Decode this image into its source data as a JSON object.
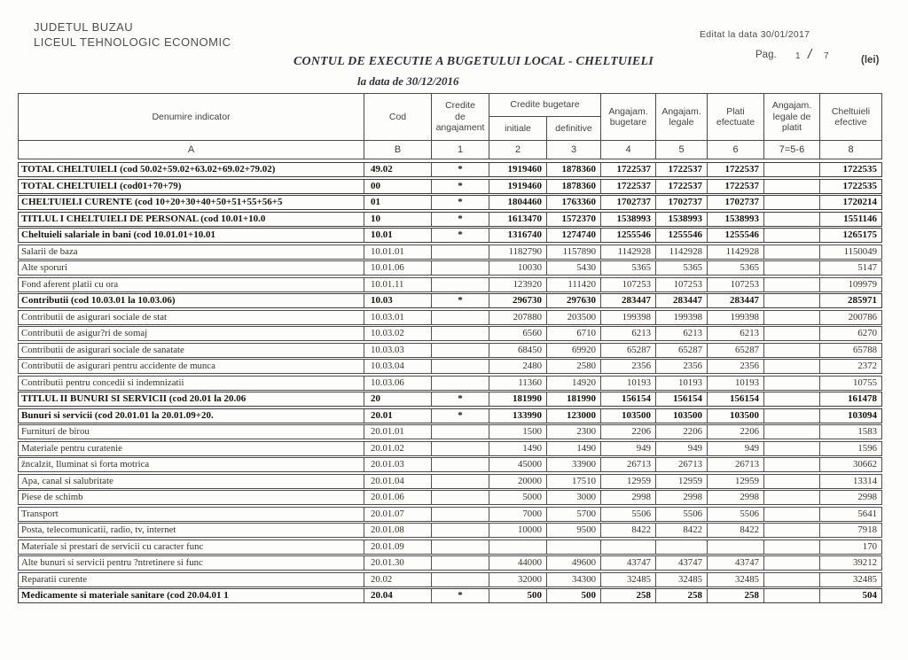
{
  "page": {
    "org_line1": "JUDETUL BUZAU",
    "org_line2": "LICEUL TEHNOLOGIC  ECONOMIC",
    "edited": "Editat la data 30/01/2017",
    "title": "CONTUL DE EXECUTIE A BUGETULUI LOCAL - CHELTUIELI",
    "subtitle": "la data de 30/12/2016",
    "page_label": "Pag.",
    "page_num": "1",
    "page_sep": "/",
    "page_total": "7",
    "currency": "(lei)"
  },
  "table": {
    "headers": {
      "denumire": "Denumire indicator",
      "cod": "Cod",
      "credite_angajament": "Credite\nde\nangajament",
      "credite_bugetare": "Credite bugetare",
      "initiale": "initiale",
      "definitive": "definitive",
      "angajam_bugetare": "Angajam.\nbugetare",
      "angajam_legale": "Angajam.\nlegale",
      "plati_efectuate": "Plati\nefectuate",
      "angajam_legale_de_platit": "Angajam.\nlegale de\nplatit",
      "cheltuieli_efective": "Cheltuieli\nefective"
    },
    "letters": [
      "A",
      "B",
      "1",
      "2",
      "3",
      "4",
      "5",
      "6",
      "7=5-6",
      "8"
    ],
    "rows": [
      {
        "denumire": "TOTAL CHELTUIELI   (cod 50.02+59.02+63.02+69.02+79.02)",
        "cod": "49.02",
        "credite_angajament": "*",
        "initiale": "1919460",
        "definitive": "1878360",
        "ang_bugetare": "1722537",
        "ang_legale": "1722537",
        "plati": "1722537",
        "de_platit": "",
        "efective": "1722535",
        "bold": true
      },
      {
        "denumire": "TOTAL CHELTUIELI  (cod01+70+79)",
        "cod": "00",
        "credite_angajament": "*",
        "initiale": "1919460",
        "definitive": "1878360",
        "ang_bugetare": "1722537",
        "ang_legale": "1722537",
        "plati": "1722537",
        "de_platit": "",
        "efective": "1722535",
        "bold": true
      },
      {
        "denumire": "CHELTUIELI CURENTE  (cod 10+20+30+40+50+51+55+56+5",
        "cod": "01",
        "credite_angajament": "*",
        "initiale": "1804460",
        "definitive": "1763360",
        "ang_bugetare": "1702737",
        "ang_legale": "1702737",
        "plati": "1702737",
        "de_platit": "",
        "efective": "1720214",
        "bold": true
      },
      {
        "denumire": "TITLUL I  CHELTUIELI DE PERSONAL   (cod 10.01+10.0",
        "cod": "10",
        "credite_angajament": "*",
        "initiale": "1613470",
        "definitive": "1572370",
        "ang_bugetare": "1538993",
        "ang_legale": "1538993",
        "plati": "1538993",
        "de_platit": "",
        "efective": "1551146",
        "bold": true
      },
      {
        "denumire": "Cheltuieli salariale in bani   (cod 10.01.01+10.01",
        "cod": "10.01",
        "credite_angajament": "*",
        "initiale": "1316740",
        "definitive": "1274740",
        "ang_bugetare": "1255546",
        "ang_legale": "1255546",
        "plati": "1255546",
        "de_platit": "",
        "efective": "1265175",
        "bold": true
      },
      {
        "denumire": "Salarii de baza",
        "cod": "10.01.01",
        "credite_angajament": "",
        "initiale": "1182790",
        "definitive": "1157890",
        "ang_bugetare": "1142928",
        "ang_legale": "1142928",
        "plati": "1142928",
        "de_platit": "",
        "efective": "1150049",
        "bold": false
      },
      {
        "denumire": "Alte sporuri",
        "cod": "10.01.06",
        "credite_angajament": "",
        "initiale": "10030",
        "definitive": "5430",
        "ang_bugetare": "5365",
        "ang_legale": "5365",
        "plati": "5365",
        "de_platit": "",
        "efective": "5147",
        "bold": false
      },
      {
        "denumire": "Fond aferent platii cu ora",
        "cod": "10.01.11",
        "credite_angajament": "",
        "initiale": "123920",
        "definitive": "111420",
        "ang_bugetare": "107253",
        "ang_legale": "107253",
        "plati": "107253",
        "de_platit": "",
        "efective": "109979",
        "bold": false
      },
      {
        "denumire": "Contributii  (cod 10.03.01 la 10.03.06)",
        "cod": "10.03",
        "credite_angajament": "*",
        "initiale": "296730",
        "definitive": "297630",
        "ang_bugetare": "283447",
        "ang_legale": "283447",
        "plati": "283447",
        "de_platit": "",
        "efective": "285971",
        "bold": true
      },
      {
        "denumire": "Contributii de asigurari sociale de stat",
        "cod": "10.03.01",
        "credite_angajament": "",
        "initiale": "207880",
        "definitive": "203500",
        "ang_bugetare": "199398",
        "ang_legale": "199398",
        "plati": "199398",
        "de_platit": "",
        "efective": "200786",
        "bold": false
      },
      {
        "denumire": "Contributii de asigur?ri de somaj",
        "cod": "10.03.02",
        "credite_angajament": "",
        "initiale": "6560",
        "definitive": "6710",
        "ang_bugetare": "6213",
        "ang_legale": "6213",
        "plati": "6213",
        "de_platit": "",
        "efective": "6270",
        "bold": false
      },
      {
        "denumire": "Contributii de asigurari sociale de sanatate",
        "cod": "10.03.03",
        "credite_angajament": "",
        "initiale": "68450",
        "definitive": "69920",
        "ang_bugetare": "65287",
        "ang_legale": "65287",
        "plati": "65287",
        "de_platit": "",
        "efective": "65788",
        "bold": false
      },
      {
        "denumire": "Contributii de asigurari pentru accidente de munca",
        "cod": "10.03.04",
        "credite_angajament": "",
        "initiale": "2480",
        "definitive": "2580",
        "ang_bugetare": "2356",
        "ang_legale": "2356",
        "plati": "2356",
        "de_platit": "",
        "efective": "2372",
        "bold": false
      },
      {
        "denumire": "Contributii pentru concedii si indemnizatii",
        "cod": "10.03.06",
        "credite_angajament": "",
        "initiale": "11360",
        "definitive": "14920",
        "ang_bugetare": "10193",
        "ang_legale": "10193",
        "plati": "10193",
        "de_platit": "",
        "efective": "10755",
        "bold": false
      },
      {
        "denumire": "TITLUL II  BUNURI SI SERVICII  (cod 20.01 la 20.06",
        "cod": "20",
        "credite_angajament": "*",
        "initiale": "181990",
        "definitive": "181990",
        "ang_bugetare": "156154",
        "ang_legale": "156154",
        "plati": "156154",
        "de_platit": "",
        "efective": "161478",
        "bold": true
      },
      {
        "denumire": "Bunuri si servicii   (cod 20.01.01 la 20.01.09+20.",
        "cod": "20.01",
        "credite_angajament": "*",
        "initiale": "133990",
        "definitive": "123000",
        "ang_bugetare": "103500",
        "ang_legale": "103500",
        "plati": "103500",
        "de_platit": "",
        "efective": "103094",
        "bold": true
      },
      {
        "denumire": "Furnituri de birou",
        "cod": "20.01.01",
        "credite_angajament": "",
        "initiale": "1500",
        "definitive": "2300",
        "ang_bugetare": "2206",
        "ang_legale": "2206",
        "plati": "2206",
        "de_platit": "",
        "efective": "1583",
        "bold": false
      },
      {
        "denumire": "Materiale pentru curatenie",
        "cod": "20.01.02",
        "credite_angajament": "",
        "initiale": "1490",
        "definitive": "1490",
        "ang_bugetare": "949",
        "ang_legale": "949",
        "plati": "949",
        "de_platit": "",
        "efective": "1596",
        "bold": false
      },
      {
        "denumire": "žncalzit, Iluminat si forta motrica",
        "cod": "20.01.03",
        "credite_angajament": "",
        "initiale": "45000",
        "definitive": "33900",
        "ang_bugetare": "26713",
        "ang_legale": "26713",
        "plati": "26713",
        "de_platit": "",
        "efective": "30662",
        "bold": false
      },
      {
        "denumire": "Apa, canal si salubritate",
        "cod": "20.01.04",
        "credite_angajament": "",
        "initiale": "20000",
        "definitive": "17510",
        "ang_bugetare": "12959",
        "ang_legale": "12959",
        "plati": "12959",
        "de_platit": "",
        "efective": "13314",
        "bold": false
      },
      {
        "denumire": "Piese de schimb",
        "cod": "20.01.06",
        "credite_angajament": "",
        "initiale": "5000",
        "definitive": "3000",
        "ang_bugetare": "2998",
        "ang_legale": "2998",
        "plati": "2998",
        "de_platit": "",
        "efective": "2998",
        "bold": false
      },
      {
        "denumire": "Transport",
        "cod": "20.01.07",
        "credite_angajament": "",
        "initiale": "7000",
        "definitive": "5700",
        "ang_bugetare": "5506",
        "ang_legale": "5506",
        "plati": "5506",
        "de_platit": "",
        "efective": "5641",
        "bold": false
      },
      {
        "denumire": "Posta, telecomunicatii, radio, tv, internet",
        "cod": "20.01.08",
        "credite_angajament": "",
        "initiale": "10000",
        "definitive": "9500",
        "ang_bugetare": "8422",
        "ang_legale": "8422",
        "plati": "8422",
        "de_platit": "",
        "efective": "7918",
        "bold": false
      },
      {
        "denumire": "Materiale si prestari de servicii cu caracter func",
        "cod": "20.01.09",
        "credite_angajament": "",
        "initiale": "",
        "definitive": "",
        "ang_bugetare": "",
        "ang_legale": "",
        "plati": "",
        "de_platit": "",
        "efective": "170",
        "bold": false
      },
      {
        "denumire": "Alte bunuri si servicii pentru ?ntretinere si func",
        "cod": "20.01.30",
        "credite_angajament": "",
        "initiale": "44000",
        "definitive": "49600",
        "ang_bugetare": "43747",
        "ang_legale": "43747",
        "plati": "43747",
        "de_platit": "",
        "efective": "39212",
        "bold": false
      },
      {
        "denumire": "Reparatii curente",
        "cod": "20.02",
        "credite_angajament": "",
        "initiale": "32000",
        "definitive": "34300",
        "ang_bugetare": "32485",
        "ang_legale": "32485",
        "plati": "32485",
        "de_platit": "",
        "efective": "32485",
        "bold": false
      },
      {
        "denumire": "Medicamente si materiale sanitare  (cod 20.04.01 1",
        "cod": "20.04",
        "credite_angajament": "*",
        "initiale": "500",
        "definitive": "500",
        "ang_bugetare": "258",
        "ang_legale": "258",
        "plati": "258",
        "de_platit": "",
        "efective": "504",
        "bold": true
      }
    ]
  }
}
